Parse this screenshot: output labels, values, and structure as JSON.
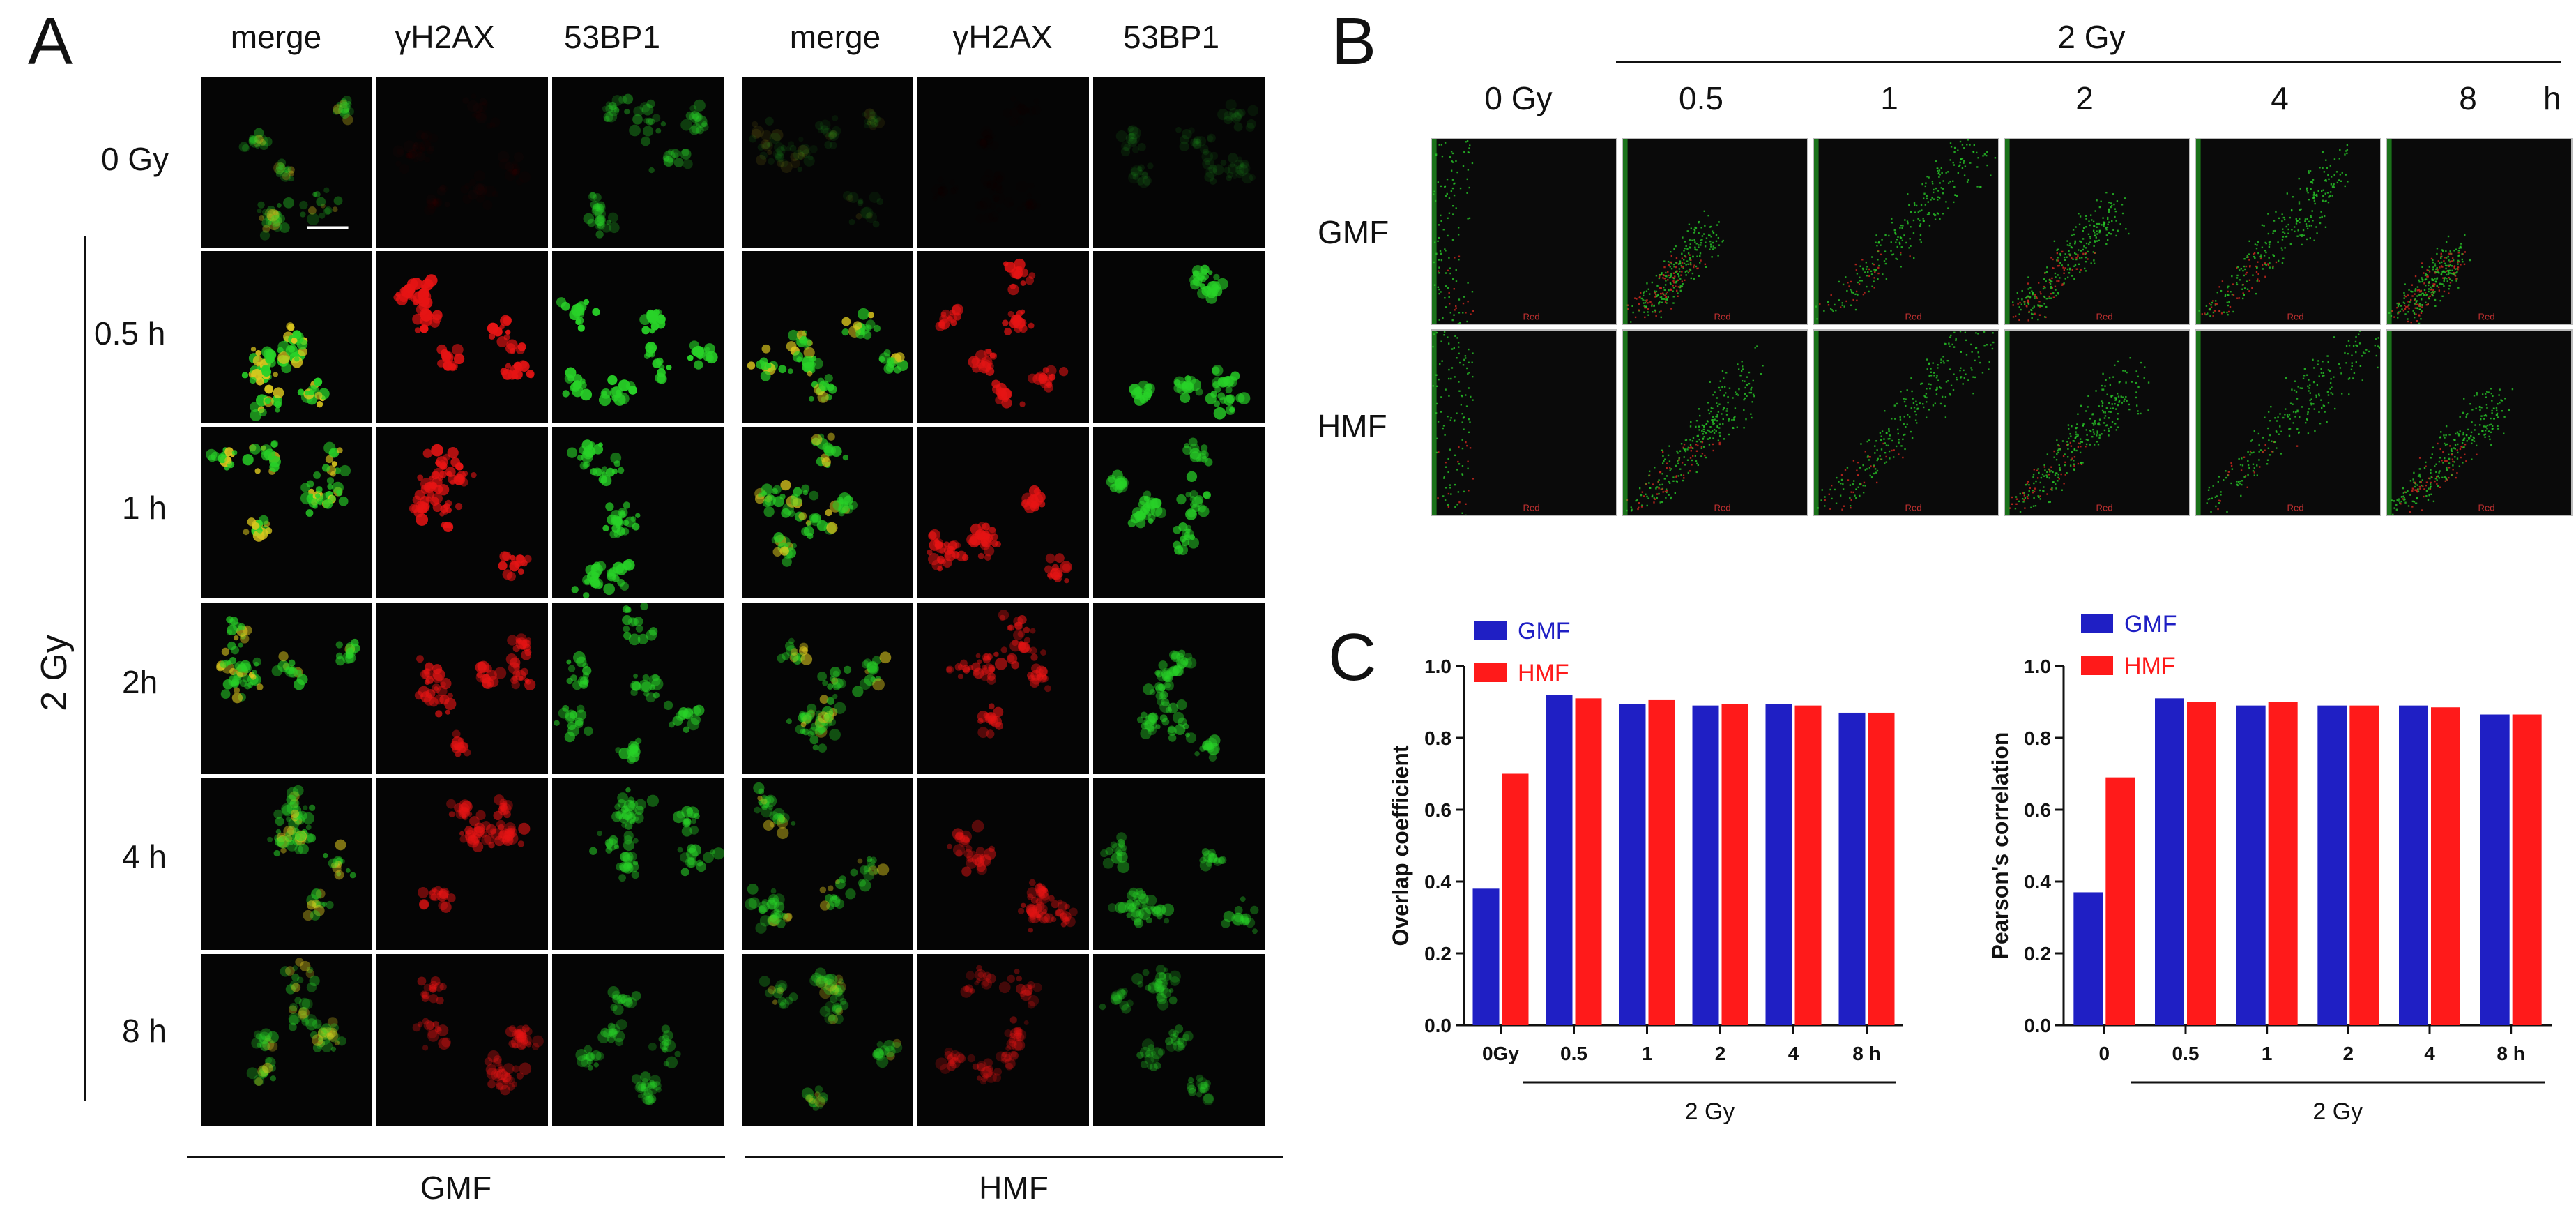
{
  "panel_A": {
    "letter": "A",
    "col_headers": [
      "merge",
      "γH2AX",
      "53BP1",
      "merge",
      "γH2AX",
      "53BP1"
    ],
    "row_labels": [
      "0 Gy",
      "0.5 h",
      "1 h",
      "2h",
      "4 h",
      "8 h"
    ],
    "dose_label": "2 Gy",
    "group_labels": [
      "GMF",
      "HMF"
    ]
  },
  "panel_B": {
    "letter": "B",
    "dose_label": "2 Gy",
    "col_headers": [
      "0 Gy",
      "0.5",
      "1",
      "2",
      "4",
      "8"
    ],
    "unit": "h",
    "row_labels": [
      "GMF",
      "HMF"
    ],
    "axis_tag": "Red"
  },
  "panel_C": {
    "letter": "C",
    "colors": {
      "GMF": "#1f1fc4",
      "HMF": "#ff1a1a"
    }
  },
  "chart_data": [
    {
      "type": "bar",
      "ylabel": "Overlap coefficient",
      "xlabel": "2 Gy",
      "categories": [
        "0Gy",
        "0.5",
        "1",
        "2",
        "4",
        "8 h"
      ],
      "ylim": [
        0,
        1.0
      ],
      "yticks": [
        "0.0",
        "0.2",
        "0.4",
        "0.6",
        "0.8",
        "1.0"
      ],
      "legend_position": "top-left",
      "series": [
        {
          "name": "GMF",
          "values": [
            0.38,
            0.92,
            0.895,
            0.89,
            0.895,
            0.87
          ]
        },
        {
          "name": "HMF",
          "values": [
            0.7,
            0.91,
            0.905,
            0.895,
            0.89,
            0.87
          ]
        }
      ]
    },
    {
      "type": "bar",
      "ylabel": "Pearson's correlation",
      "xlabel": "2 Gy",
      "categories": [
        "0",
        "0.5",
        "1",
        "2",
        "4",
        "8 h"
      ],
      "ylim": [
        0,
        1.0
      ],
      "yticks": [
        "0.0",
        "0.2",
        "0.4",
        "0.6",
        "0.8",
        "1.0"
      ],
      "legend_position": "top-left",
      "series": [
        {
          "name": "GMF",
          "values": [
            0.37,
            0.91,
            0.89,
            0.89,
            0.89,
            0.865
          ]
        },
        {
          "name": "HMF",
          "values": [
            0.69,
            0.9,
            0.9,
            0.89,
            0.885,
            0.865
          ]
        }
      ]
    }
  ]
}
